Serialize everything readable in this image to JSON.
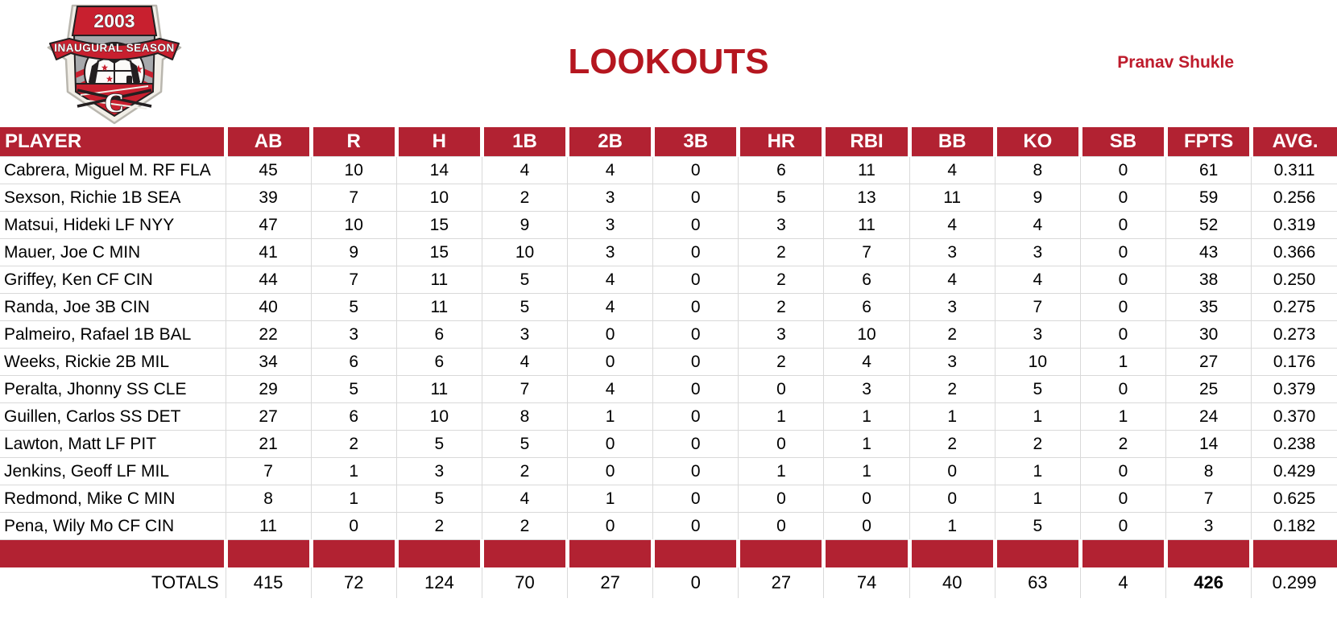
{
  "header": {
    "title": "LOOKOUTS",
    "owner": "Pranav Shukle",
    "logo": {
      "year": "2003",
      "subtitle": "INAUGURAL SEASON",
      "letter": "C"
    }
  },
  "table": {
    "columns": [
      "PLAYER",
      "AB",
      "R",
      "H",
      "1B",
      "2B",
      "3B",
      "HR",
      "RBI",
      "BB",
      "KO",
      "SB",
      "FPTS",
      "AVG."
    ],
    "rows": [
      {
        "player": "Cabrera, Miguel M. RF FLA",
        "stats": [
          "45",
          "10",
          "14",
          "4",
          "4",
          "0",
          "6",
          "11",
          "4",
          "8",
          "0",
          "61",
          "0.311"
        ]
      },
      {
        "player": "Sexson, Richie 1B SEA",
        "stats": [
          "39",
          "7",
          "10",
          "2",
          "3",
          "0",
          "5",
          "13",
          "11",
          "9",
          "0",
          "59",
          "0.256"
        ]
      },
      {
        "player": "Matsui, Hideki LF NYY",
        "stats": [
          "47",
          "10",
          "15",
          "9",
          "3",
          "0",
          "3",
          "11",
          "4",
          "4",
          "0",
          "52",
          "0.319"
        ]
      },
      {
        "player": "Mauer, Joe C MIN",
        "stats": [
          "41",
          "9",
          "15",
          "10",
          "3",
          "0",
          "2",
          "7",
          "3",
          "3",
          "0",
          "43",
          "0.366"
        ]
      },
      {
        "player": "Griffey, Ken CF CIN",
        "stats": [
          "44",
          "7",
          "11",
          "5",
          "4",
          "0",
          "2",
          "6",
          "4",
          "4",
          "0",
          "38",
          "0.250"
        ]
      },
      {
        "player": "Randa, Joe 3B CIN",
        "stats": [
          "40",
          "5",
          "11",
          "5",
          "4",
          "0",
          "2",
          "6",
          "3",
          "7",
          "0",
          "35",
          "0.275"
        ]
      },
      {
        "player": "Palmeiro, Rafael 1B BAL",
        "stats": [
          "22",
          "3",
          "6",
          "3",
          "0",
          "0",
          "3",
          "10",
          "2",
          "3",
          "0",
          "30",
          "0.273"
        ]
      },
      {
        "player": "Weeks, Rickie 2B MIL",
        "stats": [
          "34",
          "6",
          "6",
          "4",
          "0",
          "0",
          "2",
          "4",
          "3",
          "10",
          "1",
          "27",
          "0.176"
        ]
      },
      {
        "player": "Peralta, Jhonny SS CLE",
        "stats": [
          "29",
          "5",
          "11",
          "7",
          "4",
          "0",
          "0",
          "3",
          "2",
          "5",
          "0",
          "25",
          "0.379"
        ]
      },
      {
        "player": "Guillen, Carlos SS DET",
        "stats": [
          "27",
          "6",
          "10",
          "8",
          "1",
          "0",
          "1",
          "1",
          "1",
          "1",
          "1",
          "24",
          "0.370"
        ]
      },
      {
        "player": "Lawton, Matt LF PIT",
        "stats": [
          "21",
          "2",
          "5",
          "5",
          "0",
          "0",
          "0",
          "1",
          "2",
          "2",
          "2",
          "14",
          "0.238"
        ]
      },
      {
        "player": "Jenkins, Geoff LF MIL",
        "stats": [
          "7",
          "1",
          "3",
          "2",
          "0",
          "0",
          "1",
          "1",
          "0",
          "1",
          "0",
          "8",
          "0.429"
        ]
      },
      {
        "player": "Redmond, Mike C MIN",
        "stats": [
          "8",
          "1",
          "5",
          "4",
          "1",
          "0",
          "0",
          "0",
          "0",
          "1",
          "0",
          "7",
          "0.625"
        ]
      },
      {
        "player": "Pena, Wily Mo CF CIN",
        "stats": [
          "11",
          "0",
          "2",
          "2",
          "0",
          "0",
          "0",
          "0",
          "1",
          "5",
          "0",
          "3",
          "0.182"
        ]
      }
    ],
    "totals": {
      "label": "TOTALS",
      "stats": [
        "415",
        "72",
        "124",
        "70",
        "27",
        "0",
        "27",
        "74",
        "40",
        "63",
        "4",
        "426",
        "0.299"
      ],
      "bold_stat_index": 11
    }
  },
  "colors": {
    "accent_red": "#B22232",
    "title_red": "#B5161F",
    "grid_gray": "#D9D9D9",
    "logo_red": "#C8202F",
    "logo_cream": "#F1EEE7",
    "logo_gray": "#A7A9AC"
  }
}
